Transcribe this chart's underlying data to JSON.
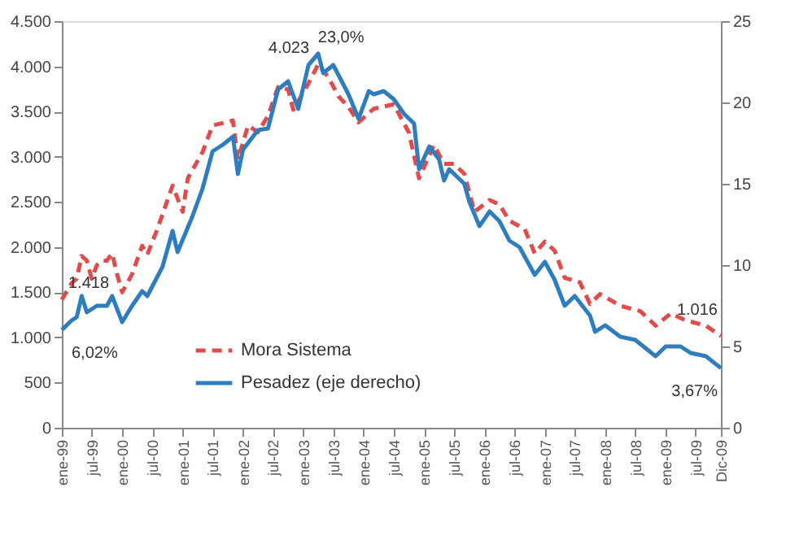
{
  "chart_data": {
    "type": "line",
    "xlim": [
      "1999-01",
      "2009-12"
    ],
    "xticks": [
      {
        "value": "1999-01",
        "label": "ene-99"
      },
      {
        "value": "1999-07",
        "label": "jul-99"
      },
      {
        "value": "2000-01",
        "label": "ene-00"
      },
      {
        "value": "2000-07",
        "label": "jul-00"
      },
      {
        "value": "2001-01",
        "label": "ene-01"
      },
      {
        "value": "2001-07",
        "label": "jul-01"
      },
      {
        "value": "2002-01",
        "label": "ene-02"
      },
      {
        "value": "2002-07",
        "label": "jul-02"
      },
      {
        "value": "2003-01",
        "label": "ene-03"
      },
      {
        "value": "2003-07",
        "label": "jul-03"
      },
      {
        "value": "2004-01",
        "label": "ene-04"
      },
      {
        "value": "2004-07",
        "label": "jul-04"
      },
      {
        "value": "2005-01",
        "label": "ene-05"
      },
      {
        "value": "2005-07",
        "label": "jul-05"
      },
      {
        "value": "2006-01",
        "label": "ene-06"
      },
      {
        "value": "2006-07",
        "label": "jul-06"
      },
      {
        "value": "2007-01",
        "label": "ene-07"
      },
      {
        "value": "2007-07",
        "label": "jul-07"
      },
      {
        "value": "2008-01",
        "label": "ene-08"
      },
      {
        "value": "2008-07",
        "label": "jul-08"
      },
      {
        "value": "2009-01",
        "label": "ene-09"
      },
      {
        "value": "2009-07",
        "label": "jul-09"
      },
      {
        "value": "2009-12",
        "label": "Dic-09"
      }
    ],
    "ylim": [
      0,
      4500
    ],
    "yticks": [
      0,
      500,
      {
        "value": 1000,
        "label": "1.000"
      },
      {
        "value": 1500,
        "label": "1.500"
      },
      {
        "value": 2000,
        "label": "2.000"
      },
      {
        "value": 2500,
        "label": "2.500"
      },
      {
        "value": 3000,
        "label": "3.000"
      },
      {
        "value": 3500,
        "label": "3.500"
      },
      {
        "value": 4000,
        "label": "4.000"
      },
      {
        "value": 4500,
        "label": "4.500"
      }
    ],
    "y2lim": [
      0,
      25
    ],
    "y2ticks": [
      0,
      5,
      10,
      15,
      20,
      25
    ],
    "grid": false,
    "legend": "bottom left",
    "marker": "none",
    "series": [
      {
        "name": "Mora Sistema",
        "color": "#e04b4b",
        "line_style": "dashed",
        "x": [
          "1999-01",
          "1999-03",
          "1999-04",
          "1999-05",
          "1999-06",
          "1999-07",
          "1999-08",
          "1999-09",
          "1999-10",
          "1999-11",
          "1999-12",
          "2000-01",
          "2000-03",
          "2000-05",
          "2000-06",
          "2000-08",
          "2000-11",
          "2001-01",
          "2001-02",
          "2001-05",
          "2001-07",
          "2001-11",
          "2001-12",
          "2002-02",
          "2002-04",
          "2002-06",
          "2002-08",
          "2002-10",
          "2002-11",
          "2003-02",
          "2003-04",
          "2003-06",
          "2003-08",
          "2003-10",
          "2003-12",
          "2004-03",
          "2004-07",
          "2004-10",
          "2004-12",
          "2005-03",
          "2005-05",
          "2005-07",
          "2005-09",
          "2005-11",
          "2006-02",
          "2006-04",
          "2006-06",
          "2006-09",
          "2006-11",
          "2007-01",
          "2007-03",
          "2007-05",
          "2007-08",
          "2007-10",
          "2007-12",
          "2008-04",
          "2008-08",
          "2008-11",
          "2009-02",
          "2009-05",
          "2009-09",
          "2009-12"
        ],
        "values": [
          1418,
          1600,
          1650,
          1900,
          1850,
          1650,
          1800,
          1850,
          1850,
          1930,
          1700,
          1500,
          1700,
          2015,
          1915,
          2200,
          2680,
          2390,
          2760,
          3050,
          3345,
          3400,
          2970,
          3345,
          3270,
          3450,
          3770,
          3745,
          3520,
          3810,
          4023,
          3880,
          3670,
          3550,
          3380,
          3530,
          3580,
          3265,
          2760,
          3130,
          2920,
          2920,
          2810,
          2390,
          2520,
          2470,
          2290,
          2200,
          1930,
          2060,
          1960,
          1660,
          1610,
          1370,
          1480,
          1350,
          1290,
          1130,
          1265,
          1190,
          1130,
          1016
        ],
        "value_labels": [
          "1.418",
          null,
          null,
          null,
          null,
          null,
          null,
          null,
          null,
          null,
          null,
          null,
          null,
          null,
          null,
          null,
          null,
          null,
          null,
          null,
          null,
          null,
          null,
          null,
          null,
          null,
          null,
          null,
          null,
          null,
          "4.023",
          null,
          null,
          null,
          null,
          null,
          null,
          null,
          null,
          null,
          null,
          null,
          null,
          null,
          null,
          null,
          null,
          null,
          null,
          null,
          null,
          null,
          null,
          null,
          null,
          null,
          null,
          null,
          null,
          null,
          null,
          "1.016"
        ]
      },
      {
        "name": "Pesadez (eje derecho)",
        "color": "#2e7ebf",
        "line_style": "solid",
        "axis": "y2",
        "x": [
          "1999-01",
          "1999-03",
          "1999-04",
          "1999-05",
          "1999-06",
          "1999-08",
          "1999-10",
          "1999-11",
          "2000-01",
          "2000-03",
          "2000-05",
          "2000-06",
          "2000-09",
          "2000-11",
          "2000-12",
          "2001-03",
          "2001-05",
          "2001-07",
          "2001-09",
          "2001-11",
          "2001-12",
          "2002-01",
          "2002-04",
          "2002-06",
          "2002-08",
          "2002-10",
          "2002-12",
          "2003-02",
          "2003-04",
          "2003-05",
          "2003-07",
          "2003-10",
          "2003-12",
          "2004-02",
          "2004-03",
          "2004-05",
          "2004-07",
          "2004-09",
          "2004-11",
          "2004-12",
          "2005-02",
          "2005-04",
          "2005-05",
          "2005-06",
          "2005-09",
          "2005-10",
          "2005-12",
          "2006-02",
          "2006-04",
          "2006-06",
          "2006-08",
          "2006-11",
          "2007-01",
          "2007-03",
          "2007-05",
          "2007-07",
          "2007-10",
          "2007-11",
          "2008-01",
          "2008-04",
          "2008-07",
          "2008-11",
          "2009-01",
          "2009-04",
          "2009-06",
          "2009-09",
          "2009-12"
        ],
        "values": [
          6.02,
          6.6,
          6.8,
          8.1,
          7.1,
          7.5,
          7.5,
          8.1,
          6.5,
          7.5,
          8.4,
          8.1,
          9.9,
          12.1,
          10.8,
          13.0,
          14.7,
          17.0,
          17.4,
          17.9,
          15.6,
          17.1,
          18.3,
          18.4,
          20.8,
          21.3,
          19.6,
          22.3,
          23.0,
          21.8,
          22.3,
          20.5,
          19.0,
          20.7,
          20.5,
          20.7,
          20.2,
          19.3,
          18.7,
          15.9,
          17.3,
          16.5,
          15.2,
          15.9,
          15.0,
          13.9,
          12.4,
          13.3,
          12.7,
          11.5,
          11.1,
          9.4,
          10.2,
          9.1,
          7.5,
          8.1,
          6.9,
          5.9,
          6.3,
          5.6,
          5.4,
          4.4,
          5.0,
          5.0,
          4.6,
          4.4,
          3.67
        ],
        "value_labels": [
          "6,02%",
          null,
          null,
          null,
          null,
          null,
          null,
          null,
          null,
          null,
          null,
          null,
          null,
          null,
          null,
          null,
          null,
          null,
          null,
          null,
          null,
          null,
          null,
          null,
          null,
          null,
          null,
          null,
          "23,0%",
          null,
          null,
          null,
          null,
          null,
          null,
          null,
          null,
          null,
          null,
          null,
          null,
          null,
          null,
          null,
          null,
          null,
          null,
          null,
          null,
          null,
          null,
          null,
          null,
          null,
          null,
          null,
          null,
          null,
          null,
          null,
          null,
          null,
          null,
          null,
          null,
          null,
          "3,67%"
        ]
      }
    ]
  }
}
